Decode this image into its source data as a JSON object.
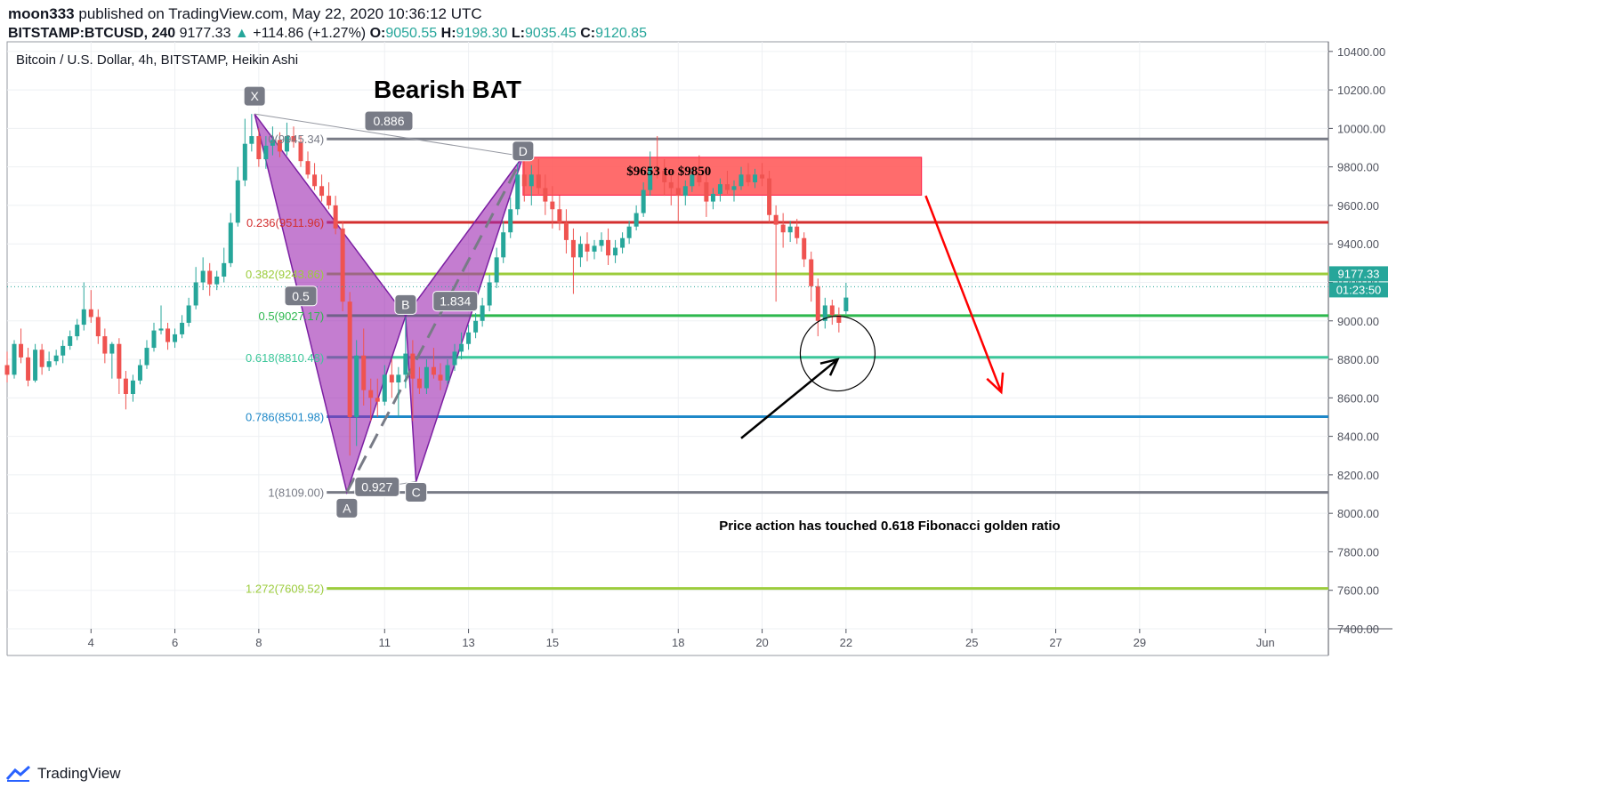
{
  "header": {
    "author": "moon333",
    "published_text": "published on TradingView.com, May 22, 2020 10:36:12 UTC",
    "symbol": "BITSTAMP:BTCUSD, 240",
    "last": "9177.33",
    "change_arrow": "▲",
    "change": "+114.86 (+1.27%)",
    "o_label": "O:",
    "o_value": "9050.55",
    "h_label": "H:",
    "h_value": "9198.30",
    "l_label": "L:",
    "l_value": "9035.45",
    "c_label": "C:",
    "c_value": "9120.85"
  },
  "footer": {
    "brand": "TradingView",
    "logo_icon": "tradingview-logo-icon"
  },
  "chart_data": {
    "type": "candlestick",
    "title": "Bitcoin / U.S. Dollar, 4h, BITSTAMP, Heikin Ashi",
    "annotation_title": "Bearish BAT",
    "price_axis": {
      "ticks": [
        7400,
        7600,
        7800,
        8000,
        8200,
        8400,
        8600,
        8800,
        9000,
        9200,
        9400,
        9600,
        9800,
        10000,
        10200,
        10400
      ],
      "tick_labels": [
        "7400.00",
        "7600.00",
        "7800.00",
        "8000.00",
        "8200.00",
        "8400.00",
        "8600.00",
        "8800.00",
        "9000.00",
        "9200.00",
        "9400.00",
        "9600.00",
        "9800.00",
        "10000.00",
        "10200.00",
        "10400.00"
      ],
      "range": [
        7400,
        10450
      ]
    },
    "time_axis": {
      "range": [
        2.0,
        33.5
      ],
      "ticks": [
        {
          "x": 4,
          "label": "4"
        },
        {
          "x": 6,
          "label": "6"
        },
        {
          "x": 8,
          "label": "8"
        },
        {
          "x": 11,
          "label": "11"
        },
        {
          "x": 13,
          "label": "13"
        },
        {
          "x": 15,
          "label": "15"
        },
        {
          "x": 18,
          "label": "18"
        },
        {
          "x": 20,
          "label": "20"
        },
        {
          "x": 22,
          "label": "22"
        },
        {
          "x": 25,
          "label": "25"
        },
        {
          "x": 27,
          "label": "27"
        },
        {
          "x": 29,
          "label": "29"
        },
        {
          "x": 32.0,
          "label": "Jun"
        }
      ]
    },
    "current_price": {
      "value": 9177.33,
      "label": "9177.33",
      "countdown": "01:23:50"
    },
    "fib_levels": [
      {
        "ratio_label": "0(9945.34)",
        "price": 9945.34,
        "color": "#787b86"
      },
      {
        "ratio_label": "0.236(9511.96)",
        "price": 9511.96,
        "color": "#d32f2f"
      },
      {
        "ratio_label": "0.382(9243.86)",
        "price": 9243.86,
        "color": "#9ccc3c"
      },
      {
        "ratio_label": "0.5(9027.17)",
        "price": 9027.17,
        "color": "#2db84e"
      },
      {
        "ratio_label": "0.618(8810.48)",
        "price": 8810.48,
        "color": "#3cc79a"
      },
      {
        "ratio_label": "0.786(8501.98)",
        "price": 8501.98,
        "color": "#1e88c8"
      },
      {
        "ratio_label": "1(8109.00)",
        "price": 8109.0,
        "color": "#787b86"
      },
      {
        "ratio_label": "1.272(7609.52)",
        "price": 7609.52,
        "color": "#9ccc3c"
      }
    ],
    "pattern": {
      "name": "Bearish BAT",
      "points": [
        {
          "label": "X",
          "x": 7.9,
          "price": 10075
        },
        {
          "label": "A",
          "x": 10.1,
          "price": 8110
        },
        {
          "label": "B",
          "x": 11.5,
          "price": 9025
        },
        {
          "label": "C",
          "x": 11.75,
          "price": 8165
        },
        {
          "label": "D",
          "x": 14.3,
          "price": 9855
        }
      ],
      "ratios": [
        {
          "label": "0.5"
        },
        {
          "label": "0.886"
        },
        {
          "label": "0.927"
        },
        {
          "label": "1.834"
        }
      ]
    },
    "zone": {
      "label": "$9653 to $9850",
      "low": 9653,
      "high": 9850,
      "x_from": 14.3,
      "x_to": 23.8,
      "color": "#ff5252"
    },
    "projection": {
      "from": {
        "x": 23.9,
        "price": 9650
      },
      "to": {
        "x": 25.7,
        "price": 8630
      },
      "color": "#ff0000"
    },
    "callout": {
      "text": "Price action has touched 0.618 Fibonacci golden ratio",
      "circle_center": {
        "x": 21.8,
        "price": 8830
      },
      "arrow_from": {
        "x": 19.5,
        "price": 8390
      },
      "arrow_to": {
        "x": 21.8,
        "price": 8800
      }
    },
    "candles": [
      {
        "x": 2.0,
        "o": 8770,
        "h": 8840,
        "l": 8680,
        "c": 8720
      },
      {
        "x": 2.17,
        "o": 8720,
        "h": 8900,
        "l": 8700,
        "c": 8880
      },
      {
        "x": 2.33,
        "o": 8880,
        "h": 8960,
        "l": 8780,
        "c": 8810
      },
      {
        "x": 2.5,
        "o": 8810,
        "h": 8860,
        "l": 8660,
        "c": 8690
      },
      {
        "x": 2.67,
        "o": 8690,
        "h": 8880,
        "l": 8680,
        "c": 8850
      },
      {
        "x": 2.83,
        "o": 8850,
        "h": 8880,
        "l": 8720,
        "c": 8760
      },
      {
        "x": 3.0,
        "o": 8760,
        "h": 8840,
        "l": 8740,
        "c": 8790
      },
      {
        "x": 3.17,
        "o": 8790,
        "h": 8850,
        "l": 8770,
        "c": 8820
      },
      {
        "x": 3.33,
        "o": 8820,
        "h": 8900,
        "l": 8780,
        "c": 8870
      },
      {
        "x": 3.5,
        "o": 8870,
        "h": 8950,
        "l": 8850,
        "c": 8920
      },
      {
        "x": 3.67,
        "o": 8920,
        "h": 9010,
        "l": 8900,
        "c": 8980
      },
      {
        "x": 3.83,
        "o": 8980,
        "h": 9200,
        "l": 8950,
        "c": 9060
      },
      {
        "x": 4.0,
        "o": 9060,
        "h": 9160,
        "l": 8990,
        "c": 9020
      },
      {
        "x": 4.17,
        "o": 9020,
        "h": 9060,
        "l": 8880,
        "c": 8920
      },
      {
        "x": 4.33,
        "o": 8920,
        "h": 8960,
        "l": 8780,
        "c": 8830
      },
      {
        "x": 4.5,
        "o": 8830,
        "h": 8890,
        "l": 8700,
        "c": 8880
      },
      {
        "x": 4.67,
        "o": 8880,
        "h": 8910,
        "l": 8620,
        "c": 8700
      },
      {
        "x": 4.83,
        "o": 8700,
        "h": 8740,
        "l": 8540,
        "c": 8620
      },
      {
        "x": 5.0,
        "o": 8620,
        "h": 8720,
        "l": 8580,
        "c": 8690
      },
      {
        "x": 5.17,
        "o": 8690,
        "h": 8800,
        "l": 8670,
        "c": 8770
      },
      {
        "x": 5.33,
        "o": 8770,
        "h": 8900,
        "l": 8750,
        "c": 8860
      },
      {
        "x": 5.5,
        "o": 8860,
        "h": 8990,
        "l": 8840,
        "c": 8950
      },
      {
        "x": 5.67,
        "o": 8950,
        "h": 9080,
        "l": 8930,
        "c": 8960
      },
      {
        "x": 5.83,
        "o": 8960,
        "h": 8990,
        "l": 8850,
        "c": 8890
      },
      {
        "x": 6.0,
        "o": 8890,
        "h": 8960,
        "l": 8860,
        "c": 8930
      },
      {
        "x": 6.17,
        "o": 8930,
        "h": 9030,
        "l": 8910,
        "c": 8990
      },
      {
        "x": 6.33,
        "o": 8990,
        "h": 9120,
        "l": 8970,
        "c": 9080
      },
      {
        "x": 6.5,
        "o": 9080,
        "h": 9280,
        "l": 9060,
        "c": 9200
      },
      {
        "x": 6.67,
        "o": 9200,
        "h": 9330,
        "l": 9160,
        "c": 9260
      },
      {
        "x": 6.83,
        "o": 9260,
        "h": 9300,
        "l": 9130,
        "c": 9190
      },
      {
        "x": 7.0,
        "o": 9190,
        "h": 9260,
        "l": 9160,
        "c": 9230
      },
      {
        "x": 7.17,
        "o": 9230,
        "h": 9380,
        "l": 9200,
        "c": 9300
      },
      {
        "x": 7.33,
        "o": 9300,
        "h": 9560,
        "l": 9280,
        "c": 9510
      },
      {
        "x": 7.5,
        "o": 9510,
        "h": 9800,
        "l": 9490,
        "c": 9730
      },
      {
        "x": 7.67,
        "o": 9730,
        "h": 10050,
        "l": 9700,
        "c": 9920
      },
      {
        "x": 7.83,
        "o": 9920,
        "h": 10075,
        "l": 9880,
        "c": 9960
      },
      {
        "x": 8.0,
        "o": 9960,
        "h": 10000,
        "l": 9800,
        "c": 9840
      },
      {
        "x": 8.17,
        "o": 9840,
        "h": 9960,
        "l": 9790,
        "c": 9910
      },
      {
        "x": 8.33,
        "o": 9910,
        "h": 10010,
        "l": 9860,
        "c": 9940
      },
      {
        "x": 8.5,
        "o": 9940,
        "h": 9980,
        "l": 9850,
        "c": 9880
      },
      {
        "x": 8.67,
        "o": 9880,
        "h": 10030,
        "l": 9860,
        "c": 9960
      },
      {
        "x": 8.83,
        "o": 9960,
        "h": 10010,
        "l": 9900,
        "c": 9930
      },
      {
        "x": 9.0,
        "o": 9930,
        "h": 9960,
        "l": 9800,
        "c": 9830
      },
      {
        "x": 9.17,
        "o": 9830,
        "h": 9880,
        "l": 9740,
        "c": 9760
      },
      {
        "x": 9.33,
        "o": 9760,
        "h": 9820,
        "l": 9680,
        "c": 9700
      },
      {
        "x": 9.5,
        "o": 9700,
        "h": 9760,
        "l": 9620,
        "c": 9650
      },
      {
        "x": 9.67,
        "o": 9650,
        "h": 9720,
        "l": 9580,
        "c": 9600
      },
      {
        "x": 9.83,
        "o": 9600,
        "h": 9650,
        "l": 9450,
        "c": 9480
      },
      {
        "x": 10.0,
        "o": 9480,
        "h": 9520,
        "l": 9050,
        "c": 9100
      },
      {
        "x": 10.17,
        "o": 9100,
        "h": 9150,
        "l": 8300,
        "c": 8500
      },
      {
        "x": 10.33,
        "o": 8500,
        "h": 8900,
        "l": 8350,
        "c": 8820
      },
      {
        "x": 10.5,
        "o": 8820,
        "h": 8960,
        "l": 8560,
        "c": 8640
      },
      {
        "x": 10.67,
        "o": 8640,
        "h": 8700,
        "l": 8480,
        "c": 8600
      },
      {
        "x": 10.83,
        "o": 8600,
        "h": 8700,
        "l": 8500,
        "c": 8580
      },
      {
        "x": 11.0,
        "o": 8580,
        "h": 8770,
        "l": 8560,
        "c": 8720
      },
      {
        "x": 11.17,
        "o": 8720,
        "h": 8800,
        "l": 8600,
        "c": 8680
      },
      {
        "x": 11.33,
        "o": 8680,
        "h": 8760,
        "l": 8500,
        "c": 8720
      },
      {
        "x": 11.5,
        "o": 8720,
        "h": 9020,
        "l": 8650,
        "c": 8830
      },
      {
        "x": 11.67,
        "o": 8830,
        "h": 8900,
        "l": 8480,
        "c": 8700
      },
      {
        "x": 11.83,
        "o": 8700,
        "h": 8760,
        "l": 8620,
        "c": 8650
      },
      {
        "x": 12.0,
        "o": 8650,
        "h": 8800,
        "l": 8620,
        "c": 8760
      },
      {
        "x": 12.17,
        "o": 8760,
        "h": 8860,
        "l": 8700,
        "c": 8720
      },
      {
        "x": 12.33,
        "o": 8720,
        "h": 8780,
        "l": 8640,
        "c": 8690
      },
      {
        "x": 12.5,
        "o": 8690,
        "h": 8800,
        "l": 8670,
        "c": 8770
      },
      {
        "x": 12.67,
        "o": 8770,
        "h": 8880,
        "l": 8740,
        "c": 8840
      },
      {
        "x": 12.83,
        "o": 8840,
        "h": 8940,
        "l": 8800,
        "c": 8880
      },
      {
        "x": 13.0,
        "o": 8880,
        "h": 8980,
        "l": 8850,
        "c": 8940
      },
      {
        "x": 13.17,
        "o": 8940,
        "h": 9040,
        "l": 8910,
        "c": 9000
      },
      {
        "x": 13.33,
        "o": 9000,
        "h": 9120,
        "l": 8970,
        "c": 9080
      },
      {
        "x": 13.5,
        "o": 9080,
        "h": 9240,
        "l": 9050,
        "c": 9200
      },
      {
        "x": 13.67,
        "o": 9200,
        "h": 9380,
        "l": 9170,
        "c": 9330
      },
      {
        "x": 13.83,
        "o": 9330,
        "h": 9520,
        "l": 9300,
        "c": 9460
      },
      {
        "x": 14.0,
        "o": 9460,
        "h": 9640,
        "l": 9430,
        "c": 9580
      },
      {
        "x": 14.17,
        "o": 9580,
        "h": 9820,
        "l": 9550,
        "c": 9760
      },
      {
        "x": 14.33,
        "o": 9760,
        "h": 9860,
        "l": 9620,
        "c": 9700
      },
      {
        "x": 14.5,
        "o": 9700,
        "h": 9810,
        "l": 9600,
        "c": 9760
      },
      {
        "x": 14.67,
        "o": 9760,
        "h": 9840,
        "l": 9660,
        "c": 9690
      },
      {
        "x": 14.83,
        "o": 9690,
        "h": 9760,
        "l": 9550,
        "c": 9620
      },
      {
        "x": 15.0,
        "o": 9620,
        "h": 9700,
        "l": 9480,
        "c": 9580
      },
      {
        "x": 15.17,
        "o": 9580,
        "h": 9650,
        "l": 9470,
        "c": 9510
      },
      {
        "x": 15.33,
        "o": 9510,
        "h": 9580,
        "l": 9350,
        "c": 9420
      },
      {
        "x": 15.5,
        "o": 9420,
        "h": 9480,
        "l": 9140,
        "c": 9330
      },
      {
        "x": 15.67,
        "o": 9330,
        "h": 9440,
        "l": 9280,
        "c": 9400
      },
      {
        "x": 15.83,
        "o": 9400,
        "h": 9460,
        "l": 9310,
        "c": 9360
      },
      {
        "x": 16.0,
        "o": 9360,
        "h": 9420,
        "l": 9320,
        "c": 9390
      },
      {
        "x": 16.17,
        "o": 9390,
        "h": 9460,
        "l": 9360,
        "c": 9420
      },
      {
        "x": 16.33,
        "o": 9420,
        "h": 9480,
        "l": 9290,
        "c": 9340
      },
      {
        "x": 16.5,
        "o": 9340,
        "h": 9420,
        "l": 9300,
        "c": 9380
      },
      {
        "x": 16.67,
        "o": 9380,
        "h": 9460,
        "l": 9350,
        "c": 9430
      },
      {
        "x": 16.83,
        "o": 9430,
        "h": 9520,
        "l": 9400,
        "c": 9490
      },
      {
        "x": 17.0,
        "o": 9490,
        "h": 9600,
        "l": 9470,
        "c": 9560
      },
      {
        "x": 17.17,
        "o": 9560,
        "h": 9720,
        "l": 9540,
        "c": 9680
      },
      {
        "x": 17.33,
        "o": 9680,
        "h": 9880,
        "l": 9650,
        "c": 9800
      },
      {
        "x": 17.5,
        "o": 9800,
        "h": 9960,
        "l": 9740,
        "c": 9780
      },
      {
        "x": 17.67,
        "o": 9780,
        "h": 9840,
        "l": 9650,
        "c": 9720
      },
      {
        "x": 17.83,
        "o": 9720,
        "h": 9780,
        "l": 9600,
        "c": 9690
      },
      {
        "x": 18.0,
        "o": 9690,
        "h": 9760,
        "l": 9520,
        "c": 9650
      },
      {
        "x": 18.17,
        "o": 9650,
        "h": 9730,
        "l": 9600,
        "c": 9700
      },
      {
        "x": 18.33,
        "o": 9700,
        "h": 9790,
        "l": 9670,
        "c": 9760
      },
      {
        "x": 18.5,
        "o": 9760,
        "h": 9860,
        "l": 9700,
        "c": 9720
      },
      {
        "x": 18.67,
        "o": 9720,
        "h": 9760,
        "l": 9540,
        "c": 9620
      },
      {
        "x": 18.83,
        "o": 9620,
        "h": 9690,
        "l": 9580,
        "c": 9660
      },
      {
        "x": 19.0,
        "o": 9660,
        "h": 9740,
        "l": 9620,
        "c": 9710
      },
      {
        "x": 19.17,
        "o": 9710,
        "h": 9780,
        "l": 9660,
        "c": 9680
      },
      {
        "x": 19.33,
        "o": 9680,
        "h": 9730,
        "l": 9620,
        "c": 9700
      },
      {
        "x": 19.5,
        "o": 9700,
        "h": 9800,
        "l": 9680,
        "c": 9760
      },
      {
        "x": 19.67,
        "o": 9760,
        "h": 9820,
        "l": 9700,
        "c": 9720
      },
      {
        "x": 19.83,
        "o": 9720,
        "h": 9790,
        "l": 9690,
        "c": 9760
      },
      {
        "x": 20.0,
        "o": 9760,
        "h": 9820,
        "l": 9700,
        "c": 9740
      },
      {
        "x": 20.17,
        "o": 9740,
        "h": 9780,
        "l": 9510,
        "c": 9550
      },
      {
        "x": 20.33,
        "o": 9550,
        "h": 9600,
        "l": 9100,
        "c": 9500
      },
      {
        "x": 20.5,
        "o": 9500,
        "h": 9560,
        "l": 9380,
        "c": 9460
      },
      {
        "x": 20.67,
        "o": 9460,
        "h": 9520,
        "l": 9410,
        "c": 9490
      },
      {
        "x": 20.83,
        "o": 9490,
        "h": 9530,
        "l": 9400,
        "c": 9430
      },
      {
        "x": 21.0,
        "o": 9430,
        "h": 9460,
        "l": 9280,
        "c": 9320
      },
      {
        "x": 21.17,
        "o": 9320,
        "h": 9360,
        "l": 9100,
        "c": 9180
      },
      {
        "x": 21.33,
        "o": 9180,
        "h": 9220,
        "l": 8920,
        "c": 9000
      },
      {
        "x": 21.5,
        "o": 9000,
        "h": 9120,
        "l": 8960,
        "c": 9080
      },
      {
        "x": 21.67,
        "o": 9080,
        "h": 9110,
        "l": 8980,
        "c": 9030
      },
      {
        "x": 21.83,
        "o": 9030,
        "h": 9070,
        "l": 8940,
        "c": 8990
      },
      {
        "x": 22.0,
        "o": 9050,
        "h": 9198,
        "l": 9035,
        "c": 9121
      }
    ]
  }
}
